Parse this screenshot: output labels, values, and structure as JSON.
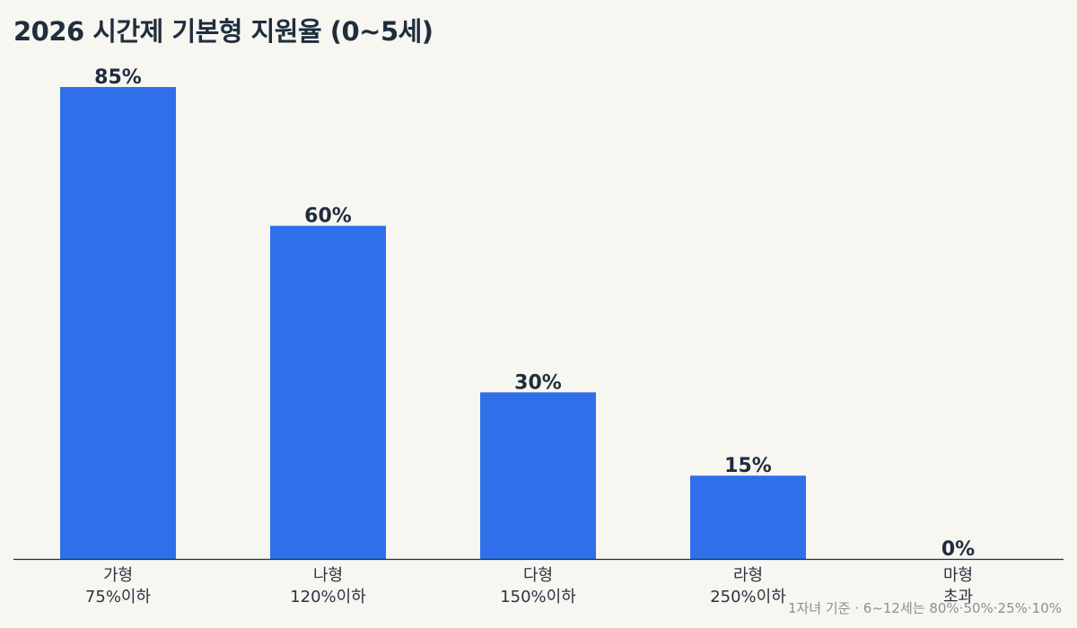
{
  "chart_data": {
    "type": "bar",
    "title": "2026 시간제 기본형 지원율 (0~5세)",
    "categories": [
      [
        "가형",
        "75%이하"
      ],
      [
        "나형",
        "120%이하"
      ],
      [
        "다형",
        "150%이하"
      ],
      [
        "라형",
        "250%이하"
      ],
      [
        "마형",
        "초과"
      ]
    ],
    "values": [
      85,
      60,
      30,
      15,
      0
    ],
    "value_labels": [
      "85%",
      "60%",
      "30%",
      "15%",
      "0%"
    ],
    "ylim": [
      0,
      85
    ],
    "grid": false,
    "bar_color": "#2f6fe9",
    "footnote": "1자녀 기준 · 6~12세는 80%·50%·25%·10%"
  }
}
